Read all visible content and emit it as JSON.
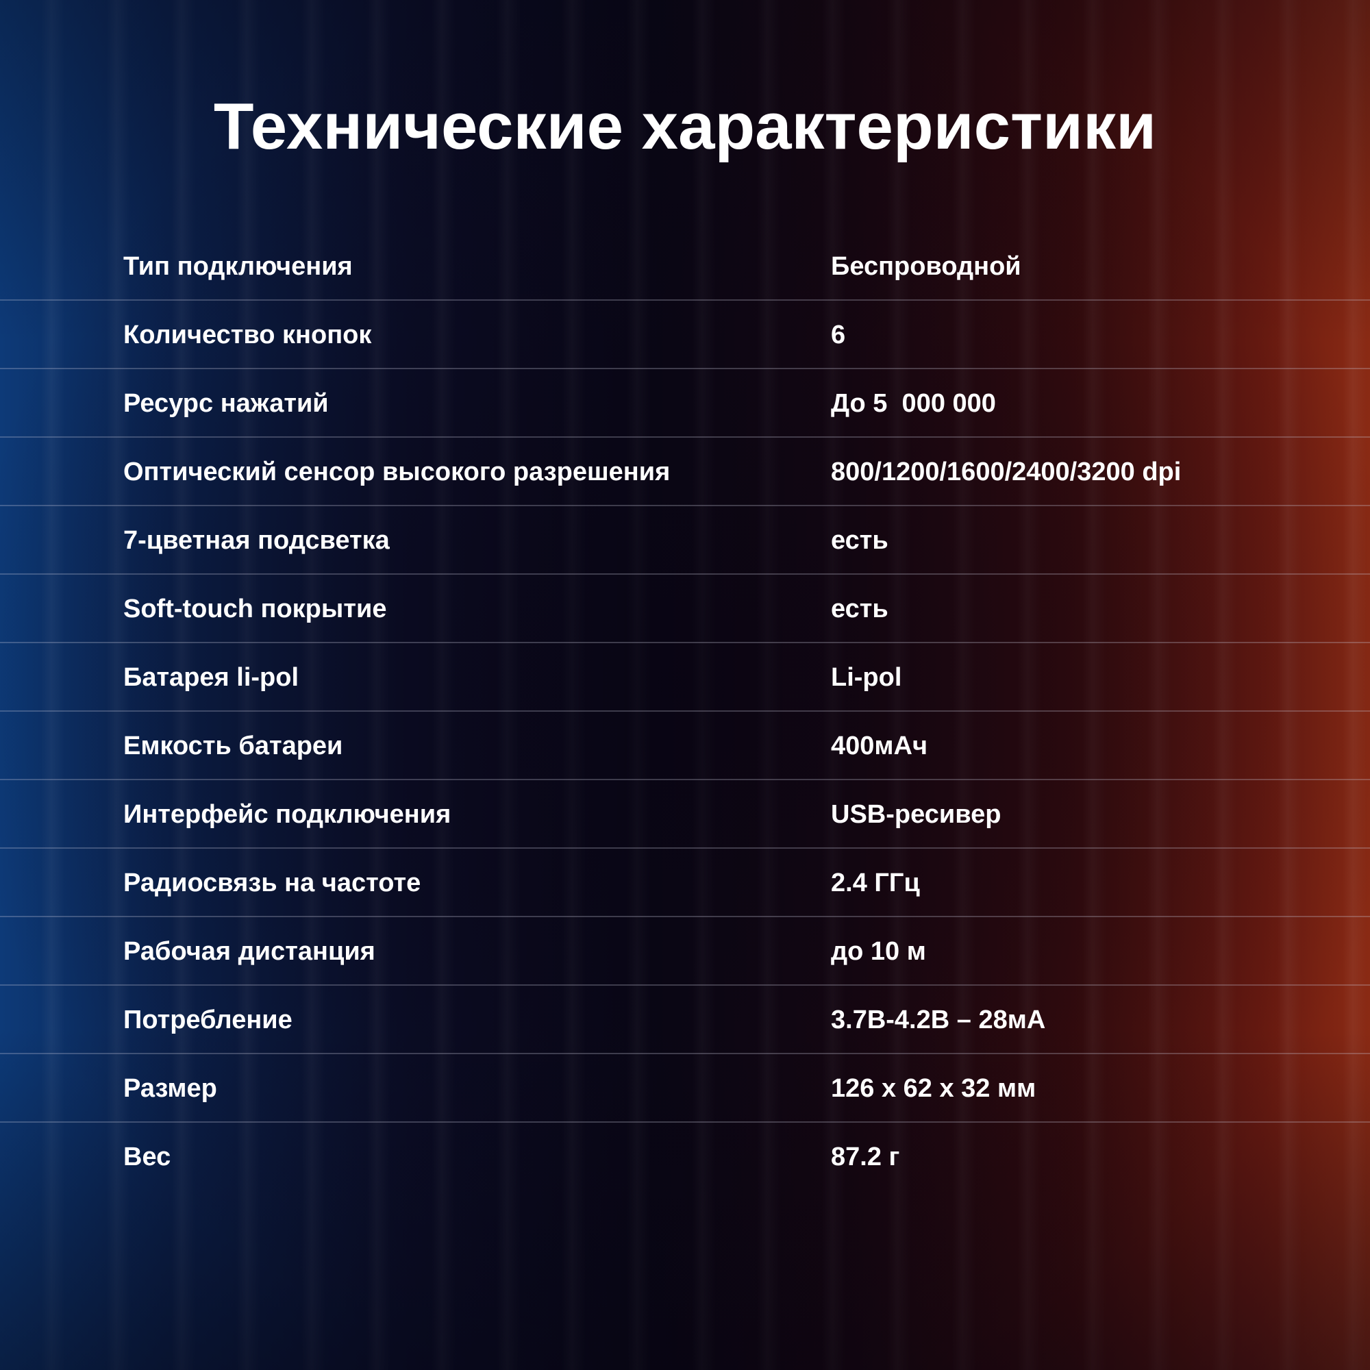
{
  "title": "Технические характеристики",
  "specs": [
    {
      "label": "Тип подключения",
      "value": "Беспроводной"
    },
    {
      "label": "Количество кнопок",
      "value": "6"
    },
    {
      "label": "Ресурс нажатий",
      "value": "До 5  000 000"
    },
    {
      "label": "Оптический сенсор высокого разрешения",
      "value": "800/1200/1600/2400/3200 dpi"
    },
    {
      "label": "7-цветная подсветка",
      "value": "есть"
    },
    {
      "label": "Soft-touch покрытие",
      "value": "есть"
    },
    {
      "label": "Батарея li-pol",
      "value": "Li-pol"
    },
    {
      "label": "Емкость батареи",
      "value": "400мАч"
    },
    {
      "label": "Интерфейс подключения",
      "value": "USB-ресивер"
    },
    {
      "label": "Радиосвязь на частоте",
      "value": "2.4 ГГц"
    },
    {
      "label": "Рабочая дистанция",
      "value": "до 10 м"
    },
    {
      "label": "Потребление",
      "value": "3.7В-4.2В – 28мА"
    },
    {
      "label": "Размер",
      "value": "126 x 62 x 32 мм"
    },
    {
      "label": "Вес",
      "value": "87.2 г"
    }
  ],
  "colors": {
    "text": "#ffffff",
    "left_glow": "#0d3a78",
    "right_glow": "#8a2a14"
  }
}
